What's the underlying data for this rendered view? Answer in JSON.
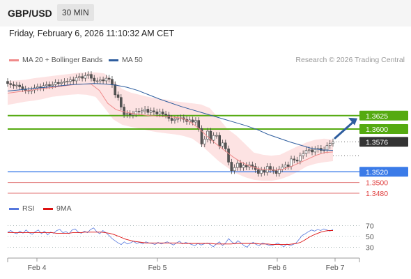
{
  "header": {
    "symbol": "GBP/USD",
    "timeframe": "30 MIN"
  },
  "timestamp": "Friday, February 6, 2026 11:10:32 AM CET",
  "legend": {
    "ma20": {
      "label": "MA 20 + Bollinger Bands",
      "color": "#f08a8a"
    },
    "ma50": {
      "label": "MA 50",
      "color": "#2e5d9e"
    },
    "rsi": {
      "label": "RSI",
      "color": "#5577dd"
    },
    "ma9": {
      "label": "9MA",
      "color": "#dd1111"
    }
  },
  "credit": "Research © 2026 Trading Central",
  "colors": {
    "green": "#55aa11",
    "blue": "#3b7be8",
    "red": "#e07070",
    "dark": "#333333",
    "arrow": "#2e5d9e"
  },
  "chart_data": {
    "type": "candlestick",
    "price_range": [
      1.3463,
      1.3716
    ],
    "resistance": [
      {
        "value": 1.3625,
        "label": "1.3625"
      },
      {
        "value": 1.36,
        "label": "1.3600"
      }
    ],
    "current_price": {
      "value": 1.3576,
      "label": "1.3576"
    },
    "pivot": {
      "value": 1.352,
      "label": "1.3520"
    },
    "support": [
      {
        "value": 1.35,
        "label": "1.3500"
      },
      {
        "value": 1.348,
        "label": "1.3480"
      }
    ],
    "closes": [
      1.3685,
      1.3683,
      1.3681,
      1.3682,
      1.3679,
      1.3675,
      1.3672,
      1.3671,
      1.3673,
      1.3677,
      1.3679,
      1.3677,
      1.3681,
      1.3683,
      1.3681,
      1.3683,
      1.3687,
      1.3685,
      1.3687,
      1.3689,
      1.3689,
      1.3692,
      1.369,
      1.3696,
      1.3698,
      1.3695,
      1.37,
      1.3702,
      1.3695,
      1.369,
      1.369,
      1.3692,
      1.369,
      1.3695,
      1.3693,
      1.3683,
      1.3664,
      1.3659,
      1.3641,
      1.3627,
      1.3629,
      1.3626,
      1.3628,
      1.3633,
      1.3632,
      1.3634,
      1.3637,
      1.3631,
      1.3634,
      1.3632,
      1.3628,
      1.3632,
      1.3628,
      1.3626,
      1.362,
      1.3616,
      1.3618,
      1.362,
      1.3621,
      1.3618,
      1.3614,
      1.3617,
      1.3613,
      1.3616,
      1.3601,
      1.3572,
      1.3581,
      1.3596,
      1.3579,
      1.3588,
      1.3588,
      1.3568,
      1.3574,
      1.3563,
      1.3538,
      1.3522,
      1.3528,
      1.3536,
      1.3528,
      1.3532,
      1.3529,
      1.3533,
      1.353,
      1.3524,
      1.3517,
      1.3523,
      1.3519,
      1.353,
      1.3524,
      1.3522,
      1.3517,
      1.3525,
      1.3529,
      1.3533,
      1.353,
      1.3544,
      1.3542,
      1.354,
      1.355,
      1.3554,
      1.356,
      1.3561,
      1.3557,
      1.3562,
      1.3564,
      1.356,
      1.3561,
      1.3569,
      1.3573,
      1.3576
    ],
    "ma20": [
      1.3667,
      1.3669,
      1.3671,
      1.3673,
      1.3675,
      1.3677,
      1.3679,
      1.3681,
      1.3683,
      1.3684,
      1.3684,
      1.3672,
      1.3648,
      1.3636,
      1.3632,
      1.3629,
      1.3627,
      1.3625,
      1.3624,
      1.3623,
      1.3622,
      1.362,
      1.3612,
      1.36,
      1.3585,
      1.3572,
      1.356,
      1.3548,
      1.3538,
      1.3531,
      1.3526,
      1.3524,
      1.3523,
      1.3525,
      1.353,
      1.3537,
      1.3544,
      1.3551,
      1.3556,
      1.3557
    ],
    "ma50": [
      1.3671,
      1.3673,
      1.3675,
      1.3677,
      1.3679,
      1.3681,
      1.3683,
      1.3684,
      1.3685,
      1.3684,
      1.3682,
      1.3678,
      1.3672,
      1.3664,
      1.3656,
      1.3649,
      1.3642,
      1.3636,
      1.363,
      1.3624,
      1.3618,
      1.3612,
      1.3606,
      1.3599,
      1.359,
      1.3583,
      1.3576,
      1.357,
      1.3564,
      1.3561,
      1.356
    ],
    "bb_upper": [
      1.369,
      1.3691,
      1.3692,
      1.3695,
      1.3697,
      1.3699,
      1.3701,
      1.3703,
      1.3705,
      1.3706,
      1.3706,
      1.3704,
      1.369,
      1.3675,
      1.3668,
      1.3664,
      1.366,
      1.3657,
      1.3655,
      1.3652,
      1.365,
      1.3648,
      1.3646,
      1.3639,
      1.362,
      1.36,
      1.3588,
      1.3572,
      1.3556,
      1.3552,
      1.355,
      1.3552,
      1.356,
      1.3568,
      1.3575,
      1.358,
      1.3582,
      1.358
    ],
    "bb_lower": [
      1.3645,
      1.3648,
      1.3651,
      1.3653,
      1.3656,
      1.366,
      1.3662,
      1.3664,
      1.3665,
      1.3664,
      1.366,
      1.364,
      1.3618,
      1.3608,
      1.3604,
      1.3601,
      1.3597,
      1.3594,
      1.3592,
      1.359,
      1.3587,
      1.3582,
      1.357,
      1.3555,
      1.354,
      1.3528,
      1.3517,
      1.351,
      1.3505,
      1.3503,
      1.3503,
      1.3506,
      1.3512,
      1.352,
      1.353,
      1.3535,
      1.3538,
      1.354
    ],
    "rsi_range": [
      15,
      85
    ],
    "rsi_levels": [
      70,
      50,
      30
    ],
    "rsi": [
      58,
      61,
      57,
      55,
      60,
      56,
      62,
      57,
      54,
      59,
      62,
      55,
      60,
      53,
      58,
      56,
      61,
      63,
      57,
      59,
      55,
      62,
      64,
      58,
      56,
      60,
      57,
      63,
      66,
      59,
      55,
      61,
      57,
      52,
      46,
      42,
      38,
      35,
      40,
      36,
      38,
      41,
      37,
      39,
      36,
      40,
      38,
      37,
      35,
      39,
      36,
      38,
      40,
      37,
      34,
      38,
      41,
      36,
      39,
      37,
      35,
      33,
      37,
      34,
      36,
      38,
      35,
      31,
      36,
      40,
      33,
      38,
      46,
      40,
      36,
      42,
      38,
      33,
      30,
      36,
      39,
      35,
      33,
      38,
      36,
      34,
      33,
      35,
      38,
      34,
      31,
      36,
      33,
      35,
      38,
      45,
      52,
      55,
      59,
      62,
      60,
      63,
      61,
      64,
      62,
      60,
      63
    ],
    "rsi_ma": [
      57,
      57,
      57,
      57,
      57,
      57,
      57,
      57,
      57,
      57,
      57,
      57,
      56,
      56,
      56,
      56,
      57,
      57,
      57,
      58,
      58,
      58,
      58,
      58,
      57,
      56,
      54,
      51,
      48,
      45,
      43,
      41,
      40,
      39,
      38,
      38,
      38,
      38,
      38,
      38,
      38,
      38,
      38,
      37,
      37,
      37,
      37,
      37,
      37,
      37,
      37,
      36,
      36,
      36,
      36,
      36,
      37,
      37,
      37,
      37,
      37,
      37,
      36,
      36,
      36,
      35,
      35,
      35,
      35,
      35,
      36,
      37,
      39,
      43,
      48,
      52,
      55,
      58,
      60,
      61,
      61
    ],
    "x_axis": {
      "ticks": [
        "Feb 4",
        "Feb 5",
        "Feb 6",
        "Feb 7"
      ]
    }
  }
}
